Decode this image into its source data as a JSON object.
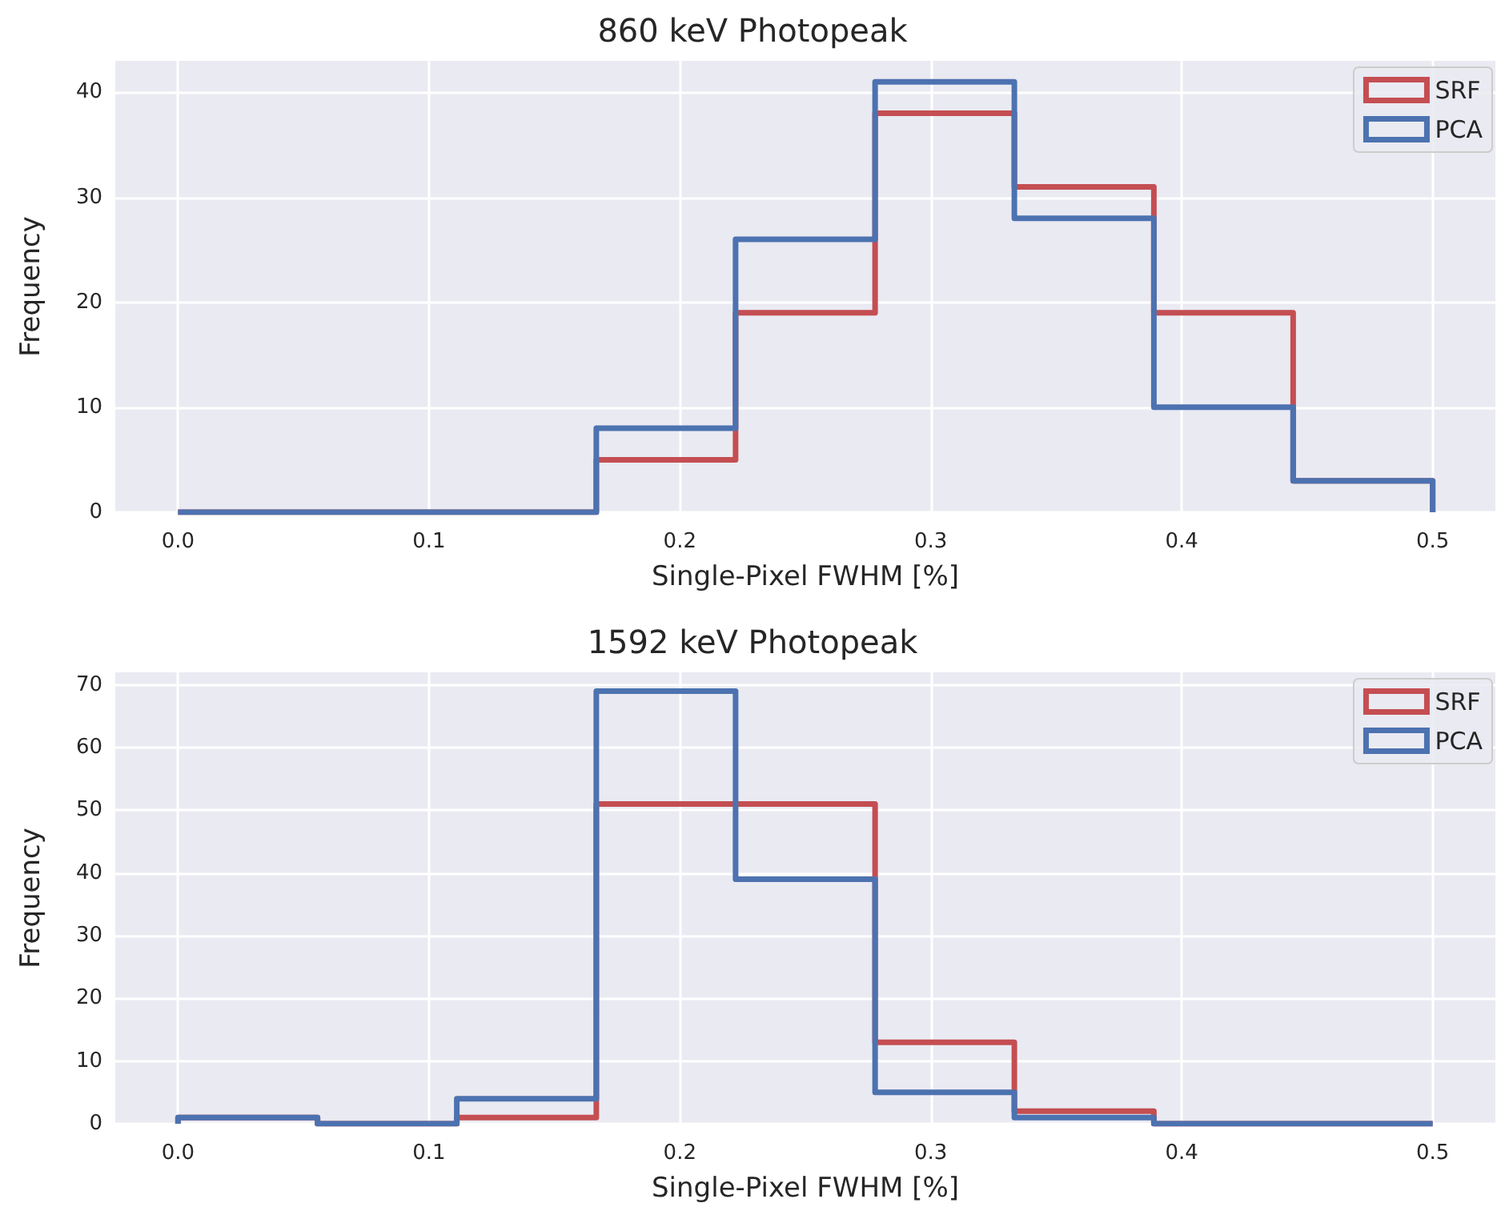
{
  "chart_data": [
    {
      "type": "histogram",
      "title": "860 keV Photopeak",
      "xlabel": "Single-Pixel FWHM [%]",
      "ylabel": "Frequency",
      "bins": [
        0,
        0.0556,
        0.1111,
        0.1667,
        0.2222,
        0.2778,
        0.3333,
        0.3889,
        0.4444,
        0.5
      ],
      "series": [
        {
          "name": "SRF",
          "color": "#c44e52",
          "values": [
            0,
            0,
            0,
            5,
            19,
            38,
            31,
            19,
            3
          ]
        },
        {
          "name": "PCA",
          "color": "#4c72b0",
          "values": [
            0,
            0,
            0,
            8,
            26,
            41,
            28,
            10,
            3
          ]
        }
      ],
      "xlim": [
        -0.025,
        0.525
      ],
      "xticks": [
        {
          "value": 0,
          "label": "0.0"
        },
        0.1,
        0.2,
        0.3,
        0.4,
        0.5
      ],
      "ylim": [
        0,
        43
      ],
      "yticks": [
        0,
        10,
        20,
        30,
        40
      ],
      "grid": true,
      "legend": "top right"
    },
    {
      "type": "histogram",
      "title": "1592 keV Photopeak",
      "xlabel": "Single-Pixel FWHM [%]",
      "ylabel": "Frequency",
      "bins": [
        0,
        0.0556,
        0.1111,
        0.1667,
        0.2222,
        0.2778,
        0.3333,
        0.3889,
        0.4444,
        0.5
      ],
      "series": [
        {
          "name": "SRF",
          "color": "#c44e52",
          "values": [
            1,
            0,
            1,
            51,
            51,
            13,
            2,
            0,
            0
          ]
        },
        {
          "name": "PCA",
          "color": "#4c72b0",
          "values": [
            1,
            0,
            4,
            69,
            39,
            5,
            1,
            0,
            0
          ]
        }
      ],
      "xlim": [
        -0.025,
        0.525
      ],
      "xticks": [
        {
          "value": 0,
          "label": "0.0"
        },
        0.1,
        0.2,
        0.3,
        0.4,
        0.5
      ],
      "ylim": [
        0,
        72
      ],
      "yticks": [
        0,
        10,
        20,
        30,
        40,
        50,
        60,
        70
      ],
      "grid": true,
      "legend": "top right"
    }
  ]
}
